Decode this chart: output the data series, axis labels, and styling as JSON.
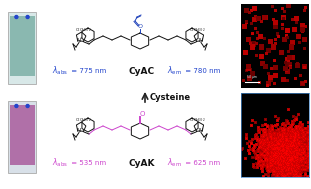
{
  "background_color": "#ffffff",
  "lambda_color_top": "#2244cc",
  "lambda_color_bottom": "#cc44cc",
  "arrow_label": "Cysteine",
  "top_abs": "= 775 nm",
  "top_em": "= 780 nm",
  "top_compound": "CyAC",
  "bot_abs": "= 535 nm",
  "bot_em": "= 625 nm",
  "bot_compound": "CyAK",
  "struct_color": "#111111",
  "ester_color": "#2244bb",
  "ketone_color": "#cc44cc",
  "chain_color_top": "#111111",
  "chain_color_bot": "#cc44cc"
}
